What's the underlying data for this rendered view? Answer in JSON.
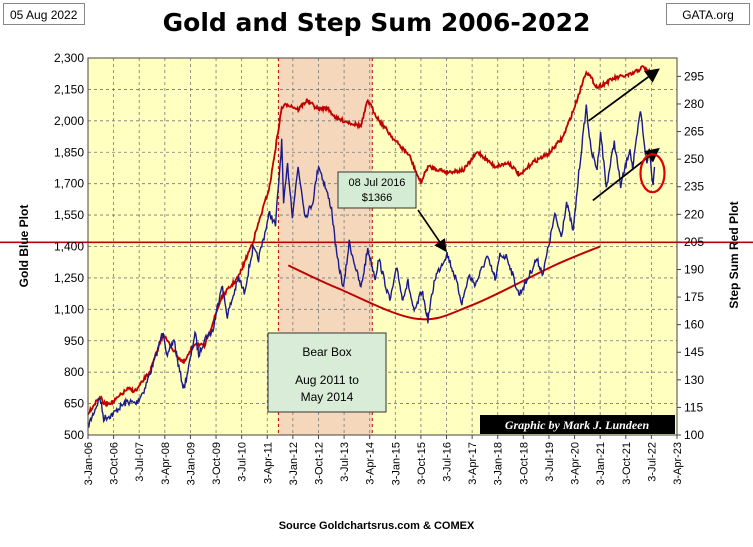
{
  "header": {
    "date": "05 Aug 2022",
    "source_site": "GATA.org",
    "title": "Gold and Step Sum 2006-2022"
  },
  "footer": {
    "source": "Source  Goldchartsrus.com  & COMEX"
  },
  "chart_data": {
    "type": "line",
    "title": "Gold and Step Sum 2006-2022",
    "ylabel_left": "Gold    Blue Plot",
    "ylabel_right": "Step Sum    Red Plot",
    "x_ticks": [
      "3-Jan-06",
      "3-Oct-06",
      "3-Jul-07",
      "3-Apr-08",
      "3-Jan-09",
      "3-Oct-09",
      "3-Jul-10",
      "3-Apr-11",
      "3-Jan-12",
      "3-Oct-12",
      "3-Jul-13",
      "3-Apr-14",
      "3-Jan-15",
      "3-Oct-15",
      "3-Jul-16",
      "3-Apr-17",
      "3-Jan-18",
      "3-Oct-18",
      "3-Jul-19",
      "3-Apr-20",
      "3-Jan-21",
      "3-Oct-21",
      "3-Jul-22",
      "3-Apr-23"
    ],
    "x_range": [
      "2006-01-03",
      "2023-04-03"
    ],
    "y_left_ticks": [
      "2,300",
      "2,150",
      "2,000",
      "1,850",
      "1,700",
      "1,550",
      "1,400",
      "1,250",
      "1,100",
      "950",
      "800",
      "650",
      "500"
    ],
    "y_left_range": [
      500,
      2300
    ],
    "y_right_ticks": [
      "295",
      "280",
      "265",
      "250",
      "235",
      "220",
      "205",
      "190",
      "175",
      "160",
      "145",
      "130",
      "115",
      "100"
    ],
    "y_right_range": [
      100,
      305
    ],
    "grid": true,
    "colors": {
      "plot_background": "#ffffc0",
      "bear_box_fill": "#f5d8bc",
      "gold_series": "#1a1a8c",
      "step_sum_series": "#c00000",
      "trend_lines": "#000000",
      "reference_curve": "#c00000"
    },
    "series": [
      {
        "key": "gold",
        "axis": "left",
        "values": [
          [
            "2006-01-03",
            540
          ],
          [
            "2006-05-10",
            680
          ],
          [
            "2006-06-20",
            580
          ],
          [
            "2006-10-01",
            600
          ],
          [
            "2006-12-01",
            630
          ],
          [
            "2007-03-01",
            660
          ],
          [
            "2007-06-01",
            650
          ],
          [
            "2007-09-01",
            720
          ],
          [
            "2007-11-01",
            800
          ],
          [
            "2008-01-01",
            880
          ],
          [
            "2008-03-17",
            1000
          ],
          [
            "2008-05-01",
            870
          ],
          [
            "2008-07-10",
            960
          ],
          [
            "2008-09-01",
            820
          ],
          [
            "2008-10-24",
            720
          ],
          [
            "2009-01-01",
            860
          ],
          [
            "2009-02-20",
            990
          ],
          [
            "2009-04-01",
            880
          ],
          [
            "2009-06-01",
            960
          ],
          [
            "2009-09-01",
            1000
          ],
          [
            "2009-12-03",
            1220
          ],
          [
            "2010-02-01",
            1070
          ],
          [
            "2010-06-01",
            1250
          ],
          [
            "2010-08-01",
            1180
          ],
          [
            "2010-11-01",
            1390
          ],
          [
            "2011-01-01",
            1340
          ],
          [
            "2011-04-29",
            1560
          ],
          [
            "2011-07-01",
            1500
          ],
          [
            "2011-09-06",
            1900
          ],
          [
            "2011-09-26",
            1600
          ],
          [
            "2011-11-08",
            1790
          ],
          [
            "2011-12-29",
            1550
          ],
          [
            "2012-02-28",
            1780
          ],
          [
            "2012-05-16",
            1540
          ],
          [
            "2012-08-01",
            1610
          ],
          [
            "2012-10-04",
            1790
          ],
          [
            "2012-12-31",
            1660
          ],
          [
            "2013-02-20",
            1580
          ],
          [
            "2013-04-15",
            1360
          ],
          [
            "2013-06-28",
            1200
          ],
          [
            "2013-08-27",
            1420
          ],
          [
            "2013-12-31",
            1200
          ],
          [
            "2014-03-14",
            1390
          ],
          [
            "2014-06-01",
            1250
          ],
          [
            "2014-07-10",
            1340
          ],
          [
            "2014-11-05",
            1140
          ],
          [
            "2015-01-22",
            1300
          ],
          [
            "2015-03-17",
            1150
          ],
          [
            "2015-05-18",
            1230
          ],
          [
            "2015-07-24",
            1080
          ],
          [
            "2015-10-14",
            1190
          ],
          [
            "2015-12-17",
            1050
          ],
          [
            "2016-03-01",
            1250
          ],
          [
            "2016-07-08",
            1366
          ],
          [
            "2016-10-06",
            1250
          ],
          [
            "2016-12-15",
            1130
          ],
          [
            "2017-02-27",
            1260
          ],
          [
            "2017-05-09",
            1220
          ],
          [
            "2017-09-08",
            1350
          ],
          [
            "2017-12-12",
            1240
          ],
          [
            "2018-01-25",
            1360
          ],
          [
            "2018-04-11",
            1350
          ],
          [
            "2018-08-16",
            1170
          ],
          [
            "2018-11-01",
            1230
          ],
          [
            "2019-02-20",
            1340
          ],
          [
            "2019-05-01",
            1270
          ],
          [
            "2019-09-04",
            1550
          ],
          [
            "2019-11-12",
            1450
          ],
          [
            "2020-01-08",
            1610
          ],
          [
            "2020-03-19",
            1470
          ],
          [
            "2020-05-18",
            1750
          ],
          [
            "2020-08-06",
            2070
          ],
          [
            "2020-09-24",
            1860
          ],
          [
            "2020-11-30",
            1770
          ],
          [
            "2021-01-06",
            1950
          ],
          [
            "2021-03-08",
            1680
          ],
          [
            "2021-06-01",
            1900
          ],
          [
            "2021-08-09",
            1690
          ],
          [
            "2021-11-16",
            1870
          ],
          [
            "2021-12-15",
            1770
          ],
          [
            "2022-03-08",
            2050
          ],
          [
            "2022-05-16",
            1790
          ],
          [
            "2022-06-10",
            1870
          ],
          [
            "2022-07-21",
            1690
          ],
          [
            "2022-08-05",
            1780
          ]
        ]
      },
      {
        "key": "step_sum",
        "axis": "right",
        "values": [
          [
            "2006-01-03",
            112
          ],
          [
            "2006-05-10",
            121
          ],
          [
            "2006-06-20",
            117
          ],
          [
            "2006-10-01",
            118
          ],
          [
            "2007-03-01",
            125
          ],
          [
            "2007-06-01",
            124
          ],
          [
            "2007-11-01",
            135
          ],
          [
            "2008-03-17",
            155
          ],
          [
            "2008-05-01",
            151
          ],
          [
            "2008-09-01",
            142
          ],
          [
            "2008-10-24",
            139
          ],
          [
            "2009-02-20",
            150
          ],
          [
            "2009-06-01",
            148
          ],
          [
            "2009-12-03",
            175
          ],
          [
            "2010-06-01",
            186
          ],
          [
            "2010-11-01",
            205
          ],
          [
            "2011-04-29",
            235
          ],
          [
            "2011-09-06",
            278
          ],
          [
            "2011-11-08",
            280
          ],
          [
            "2012-03-01",
            277
          ],
          [
            "2012-06-01",
            282
          ],
          [
            "2012-10-04",
            277
          ],
          [
            "2013-01-01",
            278
          ],
          [
            "2013-04-15",
            272
          ],
          [
            "2013-08-27",
            270
          ],
          [
            "2014-01-01",
            268
          ],
          [
            "2014-03-14",
            282
          ],
          [
            "2014-07-01",
            272
          ],
          [
            "2015-01-01",
            260
          ],
          [
            "2015-06-01",
            252
          ],
          [
            "2015-10-01",
            237
          ],
          [
            "2015-12-17",
            246
          ],
          [
            "2016-07-08",
            243
          ],
          [
            "2017-01-01",
            244
          ],
          [
            "2017-06-01",
            254
          ],
          [
            "2017-12-01",
            246
          ],
          [
            "2018-05-01",
            248
          ],
          [
            "2018-09-01",
            241
          ],
          [
            "2019-01-01",
            248
          ],
          [
            "2019-07-01",
            253
          ],
          [
            "2019-12-01",
            262
          ],
          [
            "2020-04-01",
            278
          ],
          [
            "2020-08-06",
            298
          ],
          [
            "2020-12-01",
            289
          ],
          [
            "2021-06-01",
            294
          ],
          [
            "2021-12-01",
            296
          ],
          [
            "2022-04-01",
            300
          ],
          [
            "2022-06-01",
            298
          ],
          [
            "2022-08-05",
            294
          ]
        ]
      }
    ],
    "reference_lines": [
      {
        "axis": "left",
        "value": 1420
      },
      {
        "kind": "bowl-curve",
        "axis": "left",
        "points": [
          [
            "2011-11-15",
            1310
          ],
          [
            "2013-05-01",
            1200
          ],
          [
            "2015-08-15",
            1055
          ],
          [
            "2017-04-01",
            1120
          ],
          [
            "2019-09-01",
            1310
          ],
          [
            "2021-01-01",
            1400
          ]
        ]
      },
      {
        "kind": "trend-line",
        "axis": "left",
        "points": [
          [
            "2020-09-01",
            2000
          ],
          [
            "2022-09-01",
            2240
          ]
        ]
      },
      {
        "kind": "trend-line",
        "axis": "left",
        "points": [
          [
            "2020-10-15",
            1620
          ],
          [
            "2022-09-01",
            1860
          ]
        ]
      }
    ],
    "highlight": {
      "circle_center": [
        "2022-07-15",
        1750
      ],
      "bear_box_range": [
        "2011-08-01",
        "2014-05-01"
      ]
    },
    "annotations": [
      {
        "key": "peak_label",
        "lines": [
          "08 Jul 2016",
          "$1366"
        ],
        "date": "2016-07-08",
        "value": 1366
      },
      {
        "key": "bear_box",
        "lines": [
          "Bear Box",
          "Aug 2011  to",
          "May 2014"
        ]
      },
      {
        "key": "credit",
        "text": "Graphic by Mark J. Lundeen"
      }
    ]
  }
}
